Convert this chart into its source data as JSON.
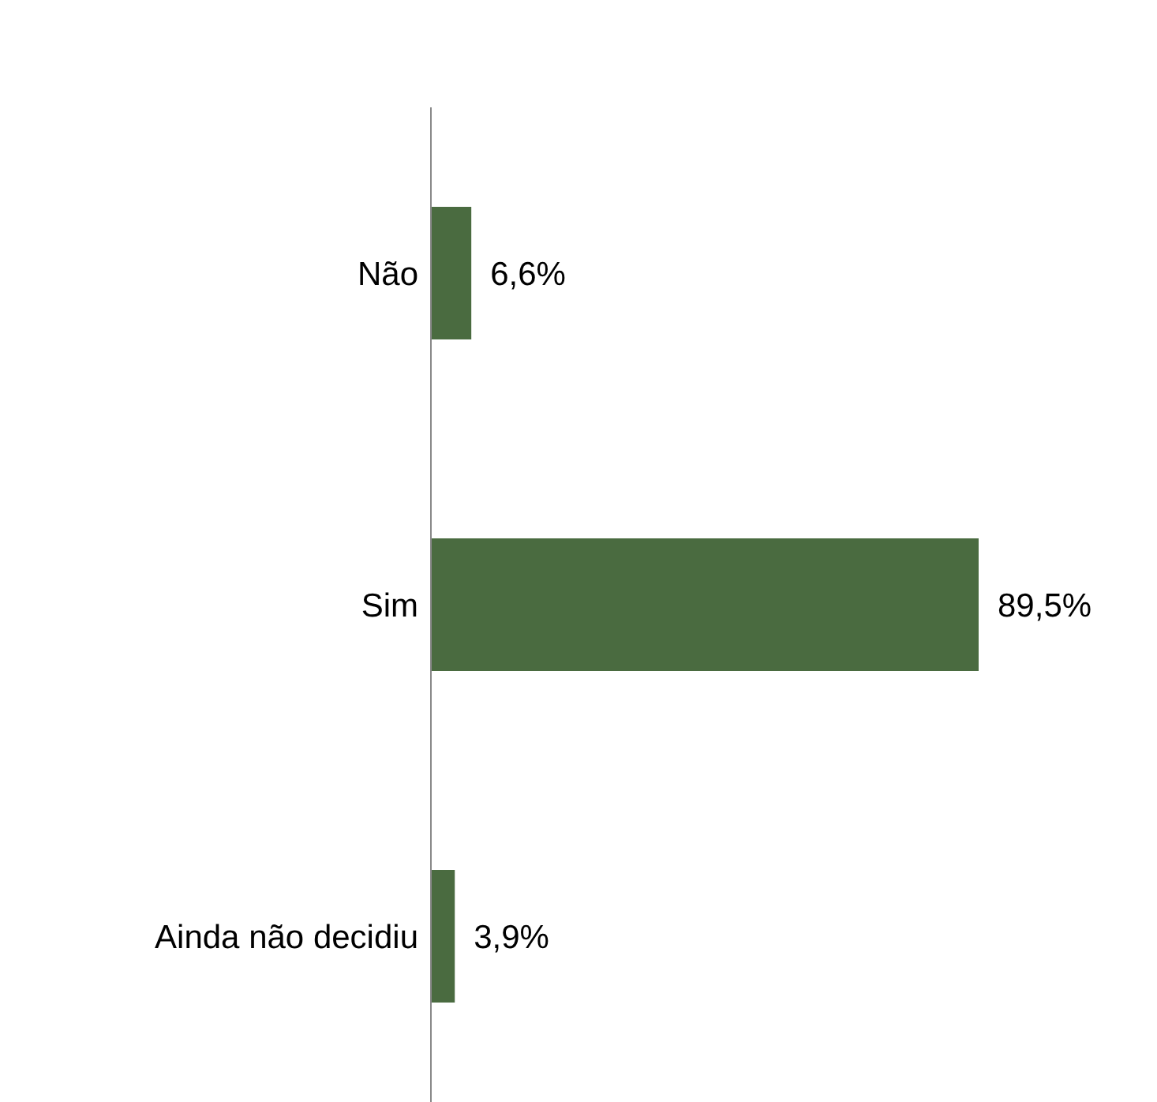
{
  "chart_data": {
    "type": "bar",
    "orientation": "horizontal",
    "categories": [
      "Não",
      "Sim",
      "Ainda não decidiu"
    ],
    "values": [
      6.6,
      89.5,
      3.9
    ],
    "value_labels": [
      "6,6%",
      "89,5%",
      "3,9%"
    ],
    "color": "#4a6b40"
  }
}
